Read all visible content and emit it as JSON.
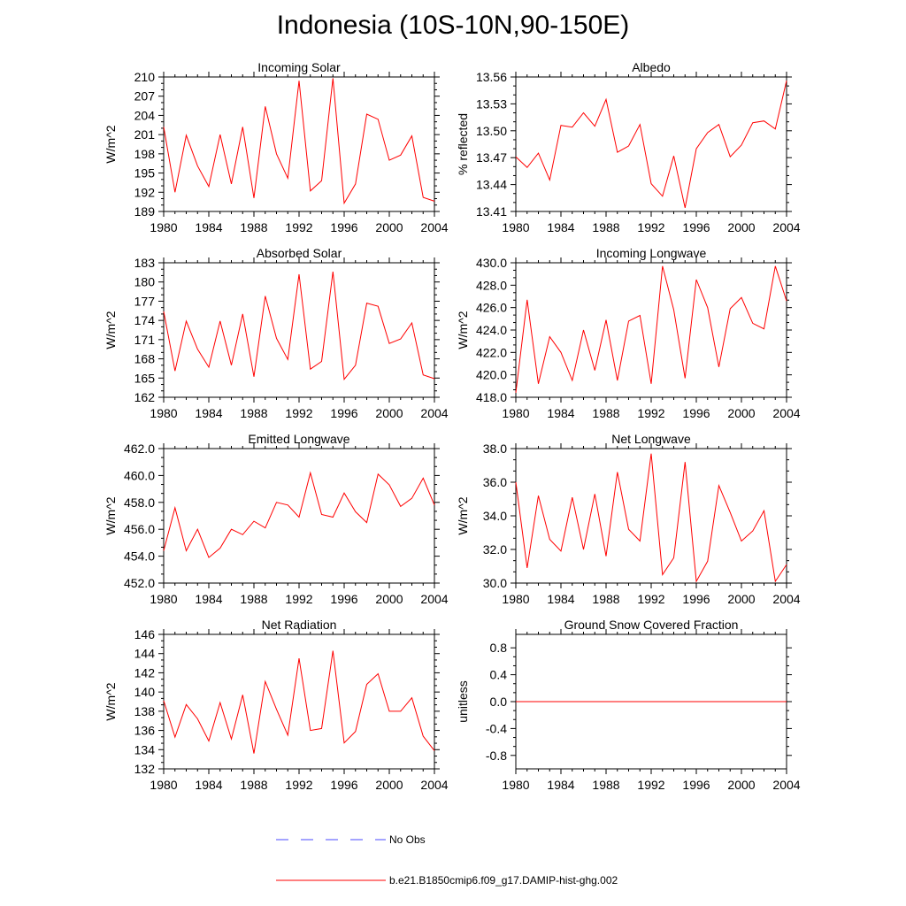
{
  "title": "Indonesia (10S-10N,90-150E)",
  "legend": {
    "obs_label": "No Obs",
    "model_label": "b.e21.B1850cmip6.f09_g17.DAMIP-hist-ghg.002",
    "obs_color": "#4a4aff",
    "model_color": "#ff0000"
  },
  "chart_data": [
    {
      "type": "line",
      "title": "Incoming Solar",
      "ylabel": "W/m^2",
      "ylim": [
        189,
        210
      ],
      "yticks": [
        189,
        192,
        195,
        198,
        201,
        204,
        207,
        210
      ],
      "ytick_labels": [
        "189",
        "192",
        "195",
        "198",
        "201",
        "204",
        "207",
        "210"
      ],
      "xlim": [
        1980,
        2004
      ],
      "xticks": [
        "1980",
        "1984",
        "1988",
        "1992",
        "1996",
        "2000",
        "2004"
      ],
      "x": [
        1980,
        1981,
        1982,
        1983,
        1984,
        1985,
        1986,
        1987,
        1988,
        1989,
        1990,
        1991,
        1992,
        1993,
        1994,
        1995,
        1996,
        1997,
        1998,
        1999,
        2000,
        2001,
        2002,
        2003,
        2004
      ],
      "series": [
        {
          "values": [
            202.2,
            192.0,
            200.9,
            196.1,
            192.9,
            201.0,
            193.3,
            202.2,
            191.1,
            205.4,
            198.0,
            194.2,
            209.4,
            192.2,
            193.8,
            209.8,
            190.3,
            193.3,
            204.2,
            203.4,
            197.0,
            197.8,
            200.8,
            191.2,
            190.6
          ]
        }
      ]
    },
    {
      "type": "line",
      "title": "Albedo",
      "ylabel": "% reflected",
      "ylim": [
        13.41,
        13.56
      ],
      "yticks": [
        13.41,
        13.44,
        13.47,
        13.5,
        13.53,
        13.56
      ],
      "ytick_labels": [
        "13.41",
        "13.44",
        "13.47",
        "13.50",
        "13.53",
        "13.56"
      ],
      "xlim": [
        1980,
        2004
      ],
      "xticks": [
        "1980",
        "1984",
        "1988",
        "1992",
        "1996",
        "2000",
        "2004"
      ],
      "x": [
        1980,
        1981,
        1982,
        1983,
        1984,
        1985,
        1986,
        1987,
        1988,
        1989,
        1990,
        1991,
        1992,
        1993,
        1994,
        1995,
        1996,
        1997,
        1998,
        1999,
        2000,
        2001,
        2002,
        2003,
        2004
      ],
      "series": [
        {
          "values": [
            13.471,
            13.459,
            13.475,
            13.445,
            13.506,
            13.504,
            13.52,
            13.505,
            13.535,
            13.476,
            13.483,
            13.507,
            13.441,
            13.427,
            13.472,
            13.414,
            13.48,
            13.498,
            13.507,
            13.471,
            13.484,
            13.509,
            13.511,
            13.502,
            13.556
          ]
        }
      ]
    },
    {
      "type": "line",
      "title": "Absorbed Solar",
      "ylabel": "W/m^2",
      "ylim": [
        162,
        183
      ],
      "yticks": [
        162,
        165,
        168,
        171,
        174,
        177,
        180,
        183
      ],
      "ytick_labels": [
        "162",
        "165",
        "168",
        "171",
        "174",
        "177",
        "180",
        "183"
      ],
      "xlim": [
        1980,
        2004
      ],
      "xticks": [
        "1980",
        "1984",
        "1988",
        "1992",
        "1996",
        "2000",
        "2004"
      ],
      "x": [
        1980,
        1981,
        1982,
        1983,
        1984,
        1985,
        1986,
        1987,
        1988,
        1989,
        1990,
        1991,
        1992,
        1993,
        1994,
        1995,
        1996,
        1997,
        1998,
        1999,
        2000,
        2001,
        2002,
        2003,
        2004
      ],
      "series": [
        {
          "values": [
            175.4,
            166.1,
            173.9,
            169.5,
            166.7,
            173.9,
            167.0,
            175.0,
            165.2,
            177.8,
            171.2,
            167.9,
            181.2,
            166.4,
            167.6,
            181.6,
            164.8,
            167.0,
            176.7,
            176.2,
            170.4,
            171.1,
            173.6,
            165.5,
            164.9
          ]
        }
      ]
    },
    {
      "type": "line",
      "title": "Incoming Longwave",
      "ylabel": "W/m^2",
      "ylim": [
        418.0,
        430.0
      ],
      "yticks": [
        418,
        420,
        422,
        424,
        426,
        428,
        430
      ],
      "ytick_labels": [
        "418.0",
        "420.0",
        "422.0",
        "424.0",
        "426.0",
        "428.0",
        "430.0"
      ],
      "xlim": [
        1980,
        2004
      ],
      "xticks": [
        "1980",
        "1984",
        "1988",
        "1992",
        "1996",
        "2000",
        "2004"
      ],
      "x": [
        1980,
        1981,
        1982,
        1983,
        1984,
        1985,
        1986,
        1987,
        1988,
        1989,
        1990,
        1991,
        1992,
        1993,
        1994,
        1995,
        1996,
        1997,
        1998,
        1999,
        2000,
        2001,
        2002,
        2003,
        2004
      ],
      "series": [
        {
          "values": [
            418.4,
            426.7,
            419.2,
            423.4,
            422.0,
            419.5,
            424.0,
            420.4,
            424.9,
            419.5,
            424.8,
            425.3,
            419.2,
            429.7,
            425.8,
            419.7,
            428.5,
            426.0,
            420.7,
            425.9,
            426.9,
            424.6,
            424.1,
            429.7,
            426.6
          ]
        }
      ]
    },
    {
      "type": "line",
      "title": "Emitted Longwave",
      "ylabel": "W/m^2",
      "ylim": [
        452.0,
        462.0
      ],
      "yticks": [
        452,
        454,
        456,
        458,
        460,
        462
      ],
      "ytick_labels": [
        "452.0",
        "454.0",
        "456.0",
        "458.0",
        "460.0",
        "462.0"
      ],
      "xlim": [
        1980,
        2004
      ],
      "xticks": [
        "1980",
        "1984",
        "1988",
        "1992",
        "1996",
        "2000",
        "2004"
      ],
      "x": [
        1980,
        1981,
        1982,
        1983,
        1984,
        1985,
        1986,
        1987,
        1988,
        1989,
        1990,
        1991,
        1992,
        1993,
        1994,
        1995,
        1996,
        1997,
        1998,
        1999,
        2000,
        2001,
        2002,
        2003,
        2004
      ],
      "series": [
        {
          "values": [
            454.4,
            457.6,
            454.4,
            456.0,
            453.9,
            454.6,
            456.0,
            455.6,
            456.6,
            456.1,
            458.0,
            457.8,
            456.9,
            460.2,
            457.1,
            456.9,
            458.7,
            457.3,
            456.5,
            460.1,
            459.3,
            457.7,
            458.3,
            459.8,
            457.8
          ]
        }
      ]
    },
    {
      "type": "line",
      "title": "Net Longwave",
      "ylabel": "W/m^2",
      "ylim": [
        30.0,
        38.0
      ],
      "yticks": [
        30,
        32,
        34,
        36,
        38
      ],
      "ytick_labels": [
        "30.0",
        "32.0",
        "34.0",
        "36.0",
        "38.0"
      ],
      "xlim": [
        1980,
        2004
      ],
      "xticks": [
        "1980",
        "1984",
        "1988",
        "1992",
        "1996",
        "2000",
        "2004"
      ],
      "x": [
        1980,
        1981,
        1982,
        1983,
        1984,
        1985,
        1986,
        1987,
        1988,
        1989,
        1990,
        1991,
        1992,
        1993,
        1994,
        1995,
        1996,
        1997,
        1998,
        1999,
        2000,
        2001,
        2002,
        2003,
        2004
      ],
      "series": [
        {
          "values": [
            36.0,
            30.9,
            35.2,
            32.6,
            31.9,
            35.1,
            32.0,
            35.3,
            31.6,
            36.6,
            33.2,
            32.5,
            37.7,
            30.5,
            31.5,
            37.2,
            30.1,
            31.3,
            35.8,
            34.2,
            32.5,
            33.1,
            34.3,
            30.1,
            31.1
          ]
        }
      ]
    },
    {
      "type": "line",
      "title": "Net Radiation",
      "ylabel": "W/m^2",
      "ylim": [
        132,
        146
      ],
      "yticks": [
        132,
        134,
        136,
        138,
        140,
        142,
        144,
        146
      ],
      "ytick_labels": [
        "132",
        "134",
        "136",
        "138",
        "140",
        "142",
        "144",
        "146"
      ],
      "xlim": [
        1980,
        2004
      ],
      "xticks": [
        "1980",
        "1984",
        "1988",
        "1992",
        "1996",
        "2000",
        "2004"
      ],
      "x": [
        1980,
        1981,
        1982,
        1983,
        1984,
        1985,
        1986,
        1987,
        1988,
        1989,
        1990,
        1991,
        1992,
        1993,
        1994,
        1995,
        1996,
        1997,
        1998,
        1999,
        2000,
        2001,
        2002,
        2003,
        2004
      ],
      "series": [
        {
          "values": [
            139.1,
            135.3,
            138.7,
            137.2,
            134.9,
            138.9,
            135.1,
            139.7,
            133.6,
            141.1,
            138.2,
            135.5,
            143.5,
            136.0,
            136.2,
            144.3,
            134.7,
            135.9,
            140.8,
            141.9,
            138.0,
            138.0,
            139.4,
            135.4,
            133.9
          ]
        }
      ]
    },
    {
      "type": "line",
      "title": "Ground Snow Covered Fraction",
      "ylabel": "unitless",
      "ylim": [
        -1.0,
        1.0
      ],
      "yticks": [
        -0.8,
        -0.4,
        0.0,
        0.4,
        0.8
      ],
      "ytick_labels": [
        "-0.8",
        "-0.4",
        "0.0",
        "0.4",
        "0.8"
      ],
      "xlim": [
        1980,
        2004
      ],
      "xticks": [
        "1980",
        "1984",
        "1988",
        "1992",
        "1996",
        "2000",
        "2004"
      ],
      "x": [
        1980,
        2004
      ],
      "series": [
        {
          "values": [
            0.0,
            0.0
          ]
        }
      ]
    }
  ]
}
